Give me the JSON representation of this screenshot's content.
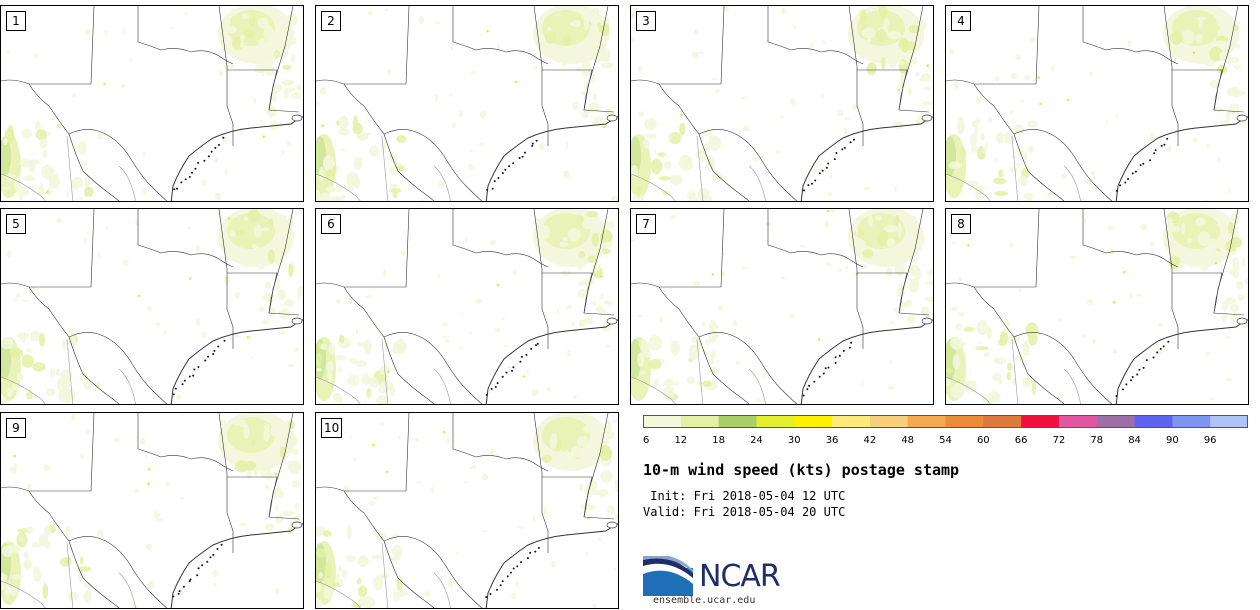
{
  "panels": {
    "members": [
      "1",
      "2",
      "3",
      "4",
      "5",
      "6",
      "7",
      "8",
      "9",
      "10"
    ]
  },
  "colorbar": {
    "tick_labels": [
      "6",
      "12",
      "18",
      "24",
      "30",
      "36",
      "42",
      "48",
      "54",
      "60",
      "66",
      "72",
      "78",
      "84",
      "90",
      "96"
    ],
    "colors": [
      "#f3f7dc",
      "#e4f0a6",
      "#a8cf68",
      "#e6ef2c",
      "#fff000",
      "#ffe97a",
      "#f8cf7a",
      "#f2a94f",
      "#e98d3a",
      "#df7a3f",
      "#ee0f3d",
      "#e256a1",
      "#9d6ea8",
      "#5d64f0",
      "#7d96f2",
      "#aec4f8"
    ]
  },
  "title": "10-m wind speed (kts) postage stamp",
  "init_line": " Init: Fri 2018-05-04 12 UTC",
  "valid_line": "Valid: Fri 2018-05-04 20 UTC",
  "logo_text": "NCAR",
  "site": "ensemble.ucar.edu",
  "shading_colors": {
    "light": "#f3f7dc",
    "medium": "#e4f0a6",
    "strong": "#a8cf68",
    "intense": "#d6ec3a"
  }
}
